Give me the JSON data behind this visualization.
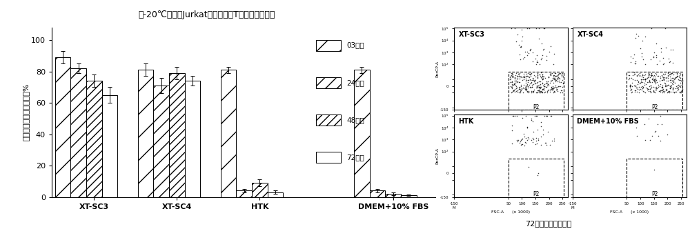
{
  "title": "在-20℃下贮存Jurkat细胞（永生T淋巴细胞）三天",
  "ylabel": "非冷冻对照的细胞存活率%",
  "xlabel_bottom": "72小时的流式细胞图",
  "groups": [
    "XT-SC3",
    "XT-SC4",
    "HTK",
    "DMEM+10% FBS"
  ],
  "time_labels": [
    "03小时",
    "24小时",
    "48小时",
    "72小时"
  ],
  "bar_data": {
    "XT-SC3": {
      "means": [
        89,
        82,
        74,
        65
      ],
      "errors": [
        4,
        3,
        4,
        5
      ]
    },
    "XT-SC4": {
      "means": [
        81,
        71,
        79,
        74
      ],
      "errors": [
        4,
        5,
        4,
        3
      ]
    },
    "HTK": {
      "means": [
        81,
        4,
        9,
        3
      ],
      "errors": [
        2,
        1,
        2,
        1
      ]
    },
    "DMEM+10% FBS": {
      "means": [
        81,
        4,
        2,
        1
      ],
      "errors": [
        2,
        1,
        1,
        0.5
      ]
    }
  },
  "hatch_patterns": [
    "/",
    "//",
    "///",
    ""
  ],
  "flow_titles": [
    "XT-SC3",
    "XT-SC4",
    "HTK",
    "DMEM+10% FBS"
  ],
  "background_color": "white"
}
